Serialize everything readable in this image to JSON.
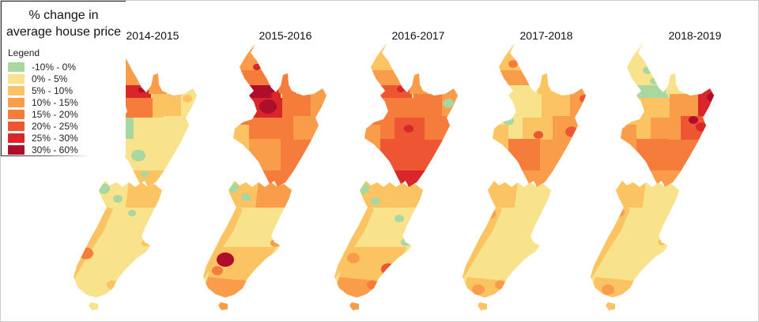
{
  "panel": {
    "title_lines": [
      "% change in",
      "average house price"
    ],
    "legend_title": "Legend"
  },
  "chart_data": {
    "type": "choropleth",
    "title": "% change in average house price",
    "geography": "New Zealand districts, five yearly small-multiple maps",
    "legend_position": "top-left",
    "legend_title": "Legend",
    "bins": [
      {
        "key": "c0",
        "range": "-10% - 0%",
        "color": "#a9d7a0"
      },
      {
        "key": "c1",
        "range": "0% - 5%",
        "color": "#f8e28b"
      },
      {
        "key": "c2",
        "range": "5% - 10%",
        "color": "#fbc361"
      },
      {
        "key": "c3",
        "range": "10% - 15%",
        "color": "#f99d4b"
      },
      {
        "key": "c4",
        "range": "15% - 20%",
        "color": "#f57c3b"
      },
      {
        "key": "c5",
        "range": "20% - 25%",
        "color": "#ee5533"
      },
      {
        "key": "c6",
        "range": "25% - 30%",
        "color": "#d8262b"
      },
      {
        "key": "c7",
        "range": "30% - 60%",
        "color": "#ae0e29"
      }
    ],
    "years": [
      "2014-2015",
      "2015-2016",
      "2016-2017",
      "2017-2018",
      "2018-2019"
    ],
    "maps": [
      {
        "year": "2014-2015",
        "regions": {
          "northland_far": "c3",
          "northland_south": "c3",
          "auckland": "c6",
          "coromandel": "c3",
          "waikato_north": "c4",
          "bop": "c2",
          "gisborne": "c1",
          "waikato_west": "c0",
          "taupo": "c1",
          "hawkes_bay": "c1",
          "manawatu": "c1",
          "taranaki": "c2",
          "wairarapa": "c1",
          "wellington": "c2",
          "nelson": "c1",
          "marlborough": "c2",
          "ncanterbury": "c1",
          "canterbury_s": "c1",
          "southland": "c1",
          "westcoast": "c2"
        },
        "spots": [
          [
            "ni",
            92,
            59,
            4,
            "c7"
          ],
          [
            "ni",
            88,
            142,
            9,
            "c0"
          ],
          [
            "ni",
            96,
            166,
            5,
            "c0"
          ],
          [
            "ni",
            150,
            70,
            6,
            "c2"
          ],
          [
            "si",
            44,
            184,
            8,
            "c0"
          ],
          [
            "si",
            62,
            197,
            6,
            "c0"
          ],
          [
            "si",
            80,
            215,
            5,
            "c0"
          ],
          [
            "si",
            22,
            266,
            9,
            "c4"
          ],
          [
            "si",
            97,
            253,
            5,
            "c2"
          ],
          [
            "si",
            55,
            306,
            7,
            "c2"
          ]
        ]
      },
      {
        "year": "2015-2016",
        "regions": {
          "northland_far": "c3",
          "northland_south": "c4",
          "auckland": "c7",
          "coromandel": "c4",
          "waikato_north": "c6",
          "bop": "c4",
          "gisborne": "c3",
          "waikato_west": "c4",
          "taupo": "c4",
          "hawkes_bay": "c3",
          "manawatu": "c3",
          "taranaki": "c2",
          "wairarapa": "c4",
          "wellington": "c4",
          "nelson": "c2",
          "marlborough": "c3",
          "ncanterbury": "c1",
          "canterbury_s": "c2",
          "southland": "c3",
          "westcoast": "c2"
        },
        "spots": [
          [
            "ni",
            88,
            80,
            11,
            "c7"
          ],
          [
            "ni",
            74,
            30,
            5,
            "c6"
          ],
          [
            "ni",
            98,
            66,
            6,
            "c6"
          ],
          [
            "ni",
            116,
            80,
            7,
            "c4"
          ],
          [
            "si",
            44,
            183,
            7,
            "c0"
          ],
          [
            "si",
            60,
            195,
            6,
            "c0"
          ],
          [
            "si",
            34,
            274,
            11,
            "c7"
          ],
          [
            "si",
            24,
            288,
            7,
            "c4"
          ],
          [
            "si",
            97,
            253,
            6,
            "c3"
          ],
          [
            "si",
            54,
            306,
            8,
            "c3"
          ]
        ]
      },
      {
        "year": "2016-2017",
        "regions": {
          "northland_far": "c2",
          "northland_south": "c3",
          "auckland": "c5",
          "coromandel": "c3",
          "waikato_north": "c4",
          "bop": "c4",
          "gisborne": "c3",
          "waikato_west": "c4",
          "taupo": "c5",
          "hawkes_bay": "c4",
          "manawatu": "c5",
          "taranaki": "c3",
          "wairarapa": "c5",
          "wellington": "c6",
          "nelson": "c2",
          "marlborough": "c2",
          "ncanterbury": "c1",
          "canterbury_s": "c2",
          "southland": "c3",
          "westcoast": "c2"
        },
        "spots": [
          [
            "ni",
            90,
            58,
            5,
            "c6"
          ],
          [
            "ni",
            100,
            108,
            6,
            "c6"
          ],
          [
            "ni",
            150,
            76,
            7,
            "c0"
          ],
          [
            "ni",
            108,
            170,
            6,
            "c6"
          ],
          [
            "si",
            42,
            184,
            8,
            "c0"
          ],
          [
            "si",
            58,
            200,
            6,
            "c0"
          ],
          [
            "si",
            88,
            222,
            6,
            "c0"
          ],
          [
            "si",
            96,
            252,
            6,
            "c0"
          ],
          [
            "si",
            74,
            286,
            9,
            "c5"
          ],
          [
            "si",
            54,
            306,
            7,
            "c4"
          ],
          [
            "si",
            30,
            272,
            8,
            "c3"
          ]
        ]
      },
      {
        "year": "2017-2018",
        "regions": {
          "northland_far": "c2",
          "northland_south": "c3",
          "auckland": "c1",
          "coromandel": "c2",
          "waikato_north": "c1",
          "bop": "c2",
          "gisborne": "c3",
          "waikato_west": "c1",
          "taupo": "c2",
          "hawkes_bay": "c3",
          "manawatu": "c4",
          "taranaki": "c2",
          "wairarapa": "c3",
          "wellington": "c3",
          "nelson": "c2",
          "marlborough": "c1",
          "ncanterbury": "c1",
          "canterbury_s": "c1",
          "southland": "c2",
          "westcoast": "c2"
        },
        "spots": [
          [
            "ni",
            144,
            112,
            8,
            "c5"
          ],
          [
            "ni",
            102,
            116,
            6,
            "c5"
          ],
          [
            "ni",
            70,
            26,
            6,
            "c4"
          ],
          [
            "ni",
            64,
            98,
            7,
            "c0"
          ],
          [
            "ni",
            160,
            70,
            6,
            "c5"
          ],
          [
            "si",
            40,
            216,
            8,
            "c3"
          ],
          [
            "si",
            54,
            306,
            7,
            "c3"
          ],
          [
            "si",
            26,
            312,
            8,
            "c3"
          ]
        ]
      },
      {
        "year": "2018-2019",
        "regions": {
          "northland_far": "c1",
          "northland_south": "c1",
          "auckland": "c0",
          "coromandel": "c1",
          "waikato_north": "c2",
          "bop": "c3",
          "gisborne": "c6",
          "waikato_west": "c2",
          "taupo": "c3",
          "hawkes_bay": "c5",
          "manawatu": "c4",
          "taranaki": "c3",
          "wairarapa": "c4",
          "wellington": "c3",
          "nelson": "c2",
          "marlborough": "c1",
          "ncanterbury": "c1",
          "canterbury_s": "c1",
          "southland": "c2",
          "westcoast": "c2"
        },
        "spots": [
          [
            "ni",
            78,
            34,
            6,
            "c0"
          ],
          [
            "ni",
            86,
            48,
            5,
            "c0"
          ],
          [
            "ni",
            136,
            97,
            6,
            "c7"
          ],
          [
            "ni",
            160,
            68,
            7,
            "c7"
          ],
          [
            "ni",
            146,
            106,
            7,
            "c6"
          ],
          [
            "si",
            28,
            312,
            8,
            "c3"
          ],
          [
            "si",
            42,
            214,
            7,
            "c3"
          ],
          [
            "si",
            96,
            252,
            5,
            "c2"
          ]
        ]
      }
    ]
  }
}
